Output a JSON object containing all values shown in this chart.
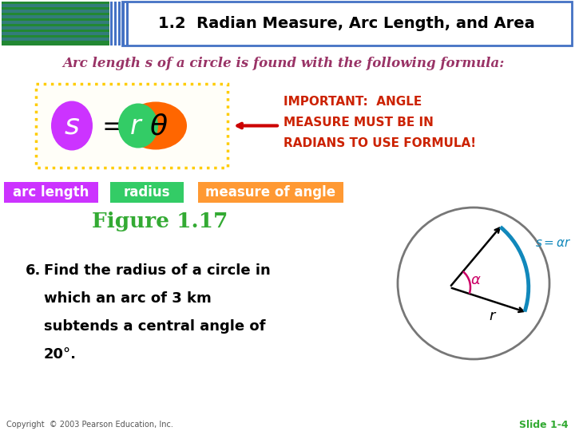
{
  "title": "1.2  Radian Measure, Arc Length, and Area",
  "subtitle": "Arc length s of a circle is found with the following formula:",
  "important_text": [
    "IMPORTANT:  ANGLE",
    "MEASURE MUST BE IN",
    "RADIANS TO USE FORMULA!"
  ],
  "label1": "arc length",
  "label2": "radius",
  "label3": "measure of angle",
  "fig_title": "Figure 1.17",
  "problem_lines": [
    "Find the radius of a circle in",
    "which an arc of 3 km",
    "subtends a central angle of",
    "20°."
  ],
  "copyright": "Copyright  © 2003 Pearson Education, Inc.",
  "slide": "Slide 1-4",
  "bg_color": "#ffffff",
  "header_bg": "#ffffff",
  "header_border": "#4472c4",
  "title_color": "#000000",
  "subtitle_color": "#993366",
  "important_color": "#cc2200",
  "label1_bg": "#cc33ff",
  "label2_bg": "#33cc66",
  "label3_bg": "#ff9933",
  "fig_title_color": "#33aa33",
  "formula_box_border": "#ffcc00",
  "s_color": "#cc33ff",
  "r_color": "#33cc66",
  "theta_color": "#ff6600",
  "arrow_color": "#cc0000",
  "circle_color": "#777777",
  "arc_color": "#1188bb",
  "angle_color": "#cc0066",
  "header_stripe_color": "#4472c4",
  "kayak_bg": "#228833"
}
